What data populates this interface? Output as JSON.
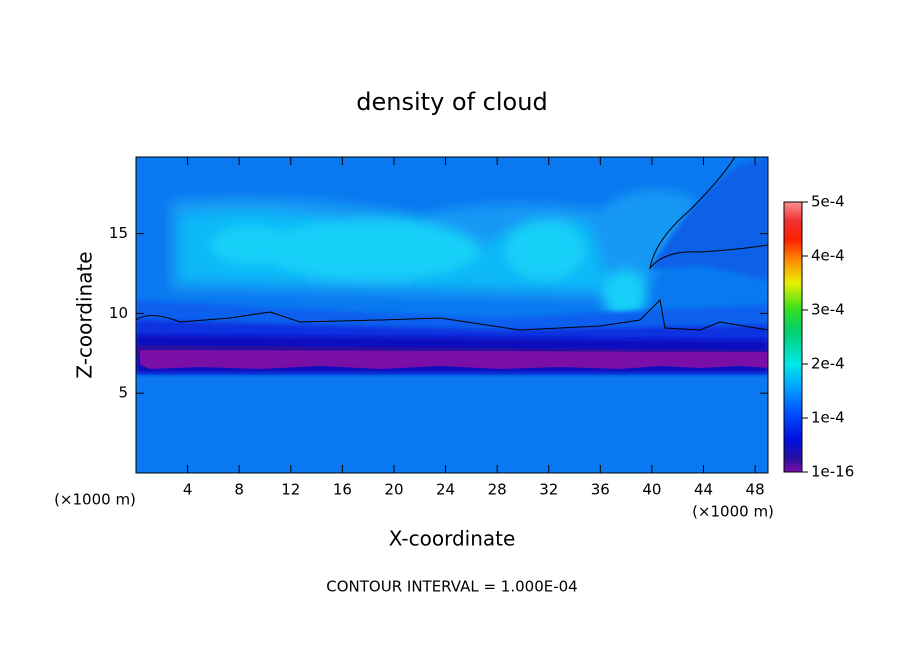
{
  "chart_data": {
    "type": "contour",
    "title": "density of cloud",
    "x_label": "X-coordinate",
    "y_label": "Z-coordinate",
    "x_unit": "(×1000 m)",
    "y_unit": "(×1000 m)",
    "footnote": "CONTOUR INTERVAL = 1.000E-04",
    "xlim": [
      0,
      49
    ],
    "ylim": [
      0,
      19.8
    ],
    "xticks": [
      4,
      8,
      12,
      16,
      20,
      24,
      28,
      32,
      36,
      40,
      44,
      48
    ],
    "yticks": [
      5,
      10,
      15
    ],
    "colorbar": {
      "lim": [
        1e-16,
        0.0005
      ],
      "ticks": [
        {
          "value": 1e-16,
          "label": "1e-16"
        },
        {
          "value": 0.0001,
          "label": "1e-4"
        },
        {
          "value": 0.0002,
          "label": "2e-4"
        },
        {
          "value": 0.0003,
          "label": "3e-4"
        },
        {
          "value": 0.0004,
          "label": "4e-4"
        },
        {
          "value": 0.0005,
          "label": "5e-4"
        }
      ]
    }
  }
}
